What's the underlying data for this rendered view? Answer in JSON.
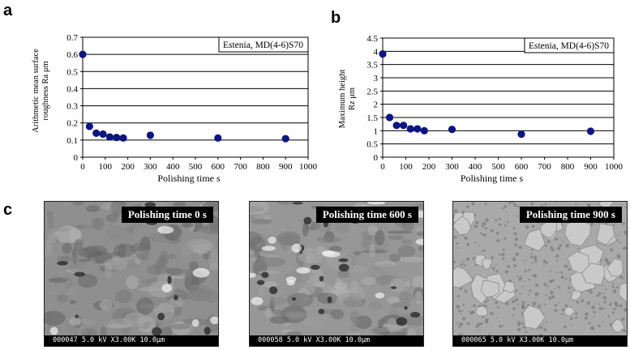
{
  "panels": {
    "a": "a",
    "b": "b",
    "c": "c"
  },
  "chart_data": [
    {
      "type": "scatter",
      "panel": "a",
      "legend_text": "Estenia, MD(4-6)S70",
      "ylabel_lines": [
        "Arithmetic mean surface",
        "roughness Ra     μm"
      ],
      "xlabel": "Polishing time     s",
      "xlim": [
        0,
        1000
      ],
      "ylim": [
        0,
        0.7
      ],
      "xticks": [
        0,
        100,
        200,
        300,
        400,
        500,
        600,
        700,
        800,
        900,
        1000
      ],
      "yticks": [
        0,
        0.1,
        0.2,
        0.3,
        0.4,
        0.5,
        0.6,
        0.7
      ],
      "ytick_labels": [
        "0",
        "0.1",
        "0.2",
        "0.3",
        "0.4",
        "0.5",
        "0.6",
        "0.7"
      ],
      "grid": "horizontal",
      "legend_position": "top-right",
      "marker_color": "#0d1580",
      "x": [
        0,
        30,
        60,
        90,
        120,
        150,
        180,
        300,
        600,
        900
      ],
      "y": [
        0.6,
        0.18,
        0.14,
        0.135,
        0.118,
        0.115,
        0.112,
        0.128,
        0.112,
        0.108
      ]
    },
    {
      "type": "scatter",
      "panel": "b",
      "legend_text": "Estenia, MD(4-6)S70",
      "ylabel_lines": [
        "Maximum height",
        "Rz    μm"
      ],
      "xlabel": "Polishing time     s",
      "xlim": [
        0,
        1000
      ],
      "ylim": [
        0,
        4.5
      ],
      "xticks": [
        0,
        100,
        200,
        300,
        400,
        500,
        600,
        700,
        800,
        900,
        1000
      ],
      "yticks": [
        0,
        0.5,
        1,
        1.5,
        2,
        2.5,
        3,
        3.5,
        4,
        4.5
      ],
      "ytick_labels": [
        "0",
        "0.5",
        "1",
        "1.5",
        "2",
        "2.5",
        "3",
        "3.5",
        "4",
        "4.5"
      ],
      "grid": "horizontal",
      "legend_position": "top-right",
      "marker_color": "#0d1580",
      "x": [
        0,
        30,
        60,
        90,
        120,
        150,
        180,
        300,
        600,
        900
      ],
      "y": [
        3.9,
        1.5,
        1.2,
        1.2,
        1.07,
        1.07,
        1.0,
        1.05,
        0.87,
        0.98
      ]
    }
  ],
  "sem_images": [
    {
      "caption": "Polishing time 0 s",
      "scale_text": "000047 5.0 kV X3.00K 10.0μm",
      "tone": "#8f8f8f"
    },
    {
      "caption": "Polishing time 600 s",
      "scale_text": "000058 5.0 kV X3.00K 10.0μm",
      "tone": "#979797"
    },
    {
      "caption": "Polishing time 900 s",
      "scale_text": "000065 5.0 kV X3.00K 10.0μm",
      "tone": "#a9a9a9"
    }
  ]
}
